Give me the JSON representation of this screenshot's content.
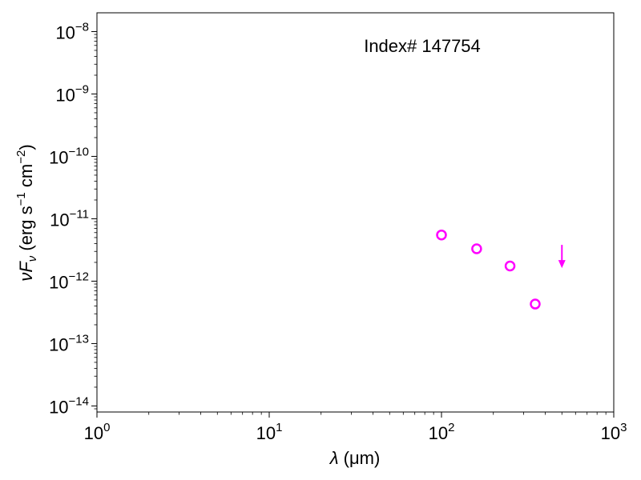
{
  "chart_data": {
    "type": "scatter",
    "xscale": "log",
    "yscale": "log",
    "xlim": [
      1,
      1000
    ],
    "ylim": [
      8e-15,
      2e-08
    ],
    "xlabel": {
      "prefix": "λ",
      "text": " (μm)"
    },
    "ylabel": {
      "text": "νF",
      "sub": "ν",
      "units": "(erg s",
      "exp1": "−1",
      "mid": " cm",
      "exp2": "−2",
      "end": ")"
    },
    "annotation": "Index# 147754",
    "x_ticks": [
      {
        "value": 1,
        "base": "10",
        "exp": "0"
      },
      {
        "value": 10,
        "base": "10",
        "exp": "1"
      },
      {
        "value": 100,
        "base": "10",
        "exp": "2"
      },
      {
        "value": 1000,
        "base": "10",
        "exp": "3"
      }
    ],
    "y_ticks": [
      {
        "value": 1e-14,
        "base": "10",
        "exp": "−14"
      },
      {
        "value": 1e-13,
        "base": "10",
        "exp": "−13"
      },
      {
        "value": 1e-12,
        "base": "10",
        "exp": "−12"
      },
      {
        "value": 1e-11,
        "base": "10",
        "exp": "−11"
      },
      {
        "value": 1e-10,
        "base": "10",
        "exp": "−10"
      },
      {
        "value": 1e-09,
        "base": "10",
        "exp": "−9"
      },
      {
        "value": 1e-08,
        "base": "10",
        "exp": "−8"
      }
    ],
    "series": [
      {
        "marker": "open-circle",
        "color": "#ff00ff",
        "points": [
          {
            "x": 100,
            "y": 5.5e-12
          },
          {
            "x": 160,
            "y": 3.3e-12
          },
          {
            "x": 250,
            "y": 1.75e-12
          },
          {
            "x": 350,
            "y": 4.3e-13
          }
        ]
      },
      {
        "marker": "upper-limit-arrow",
        "color": "#ff00ff",
        "points": [
          {
            "x": 500,
            "y": 2.6e-12
          }
        ]
      }
    ]
  }
}
